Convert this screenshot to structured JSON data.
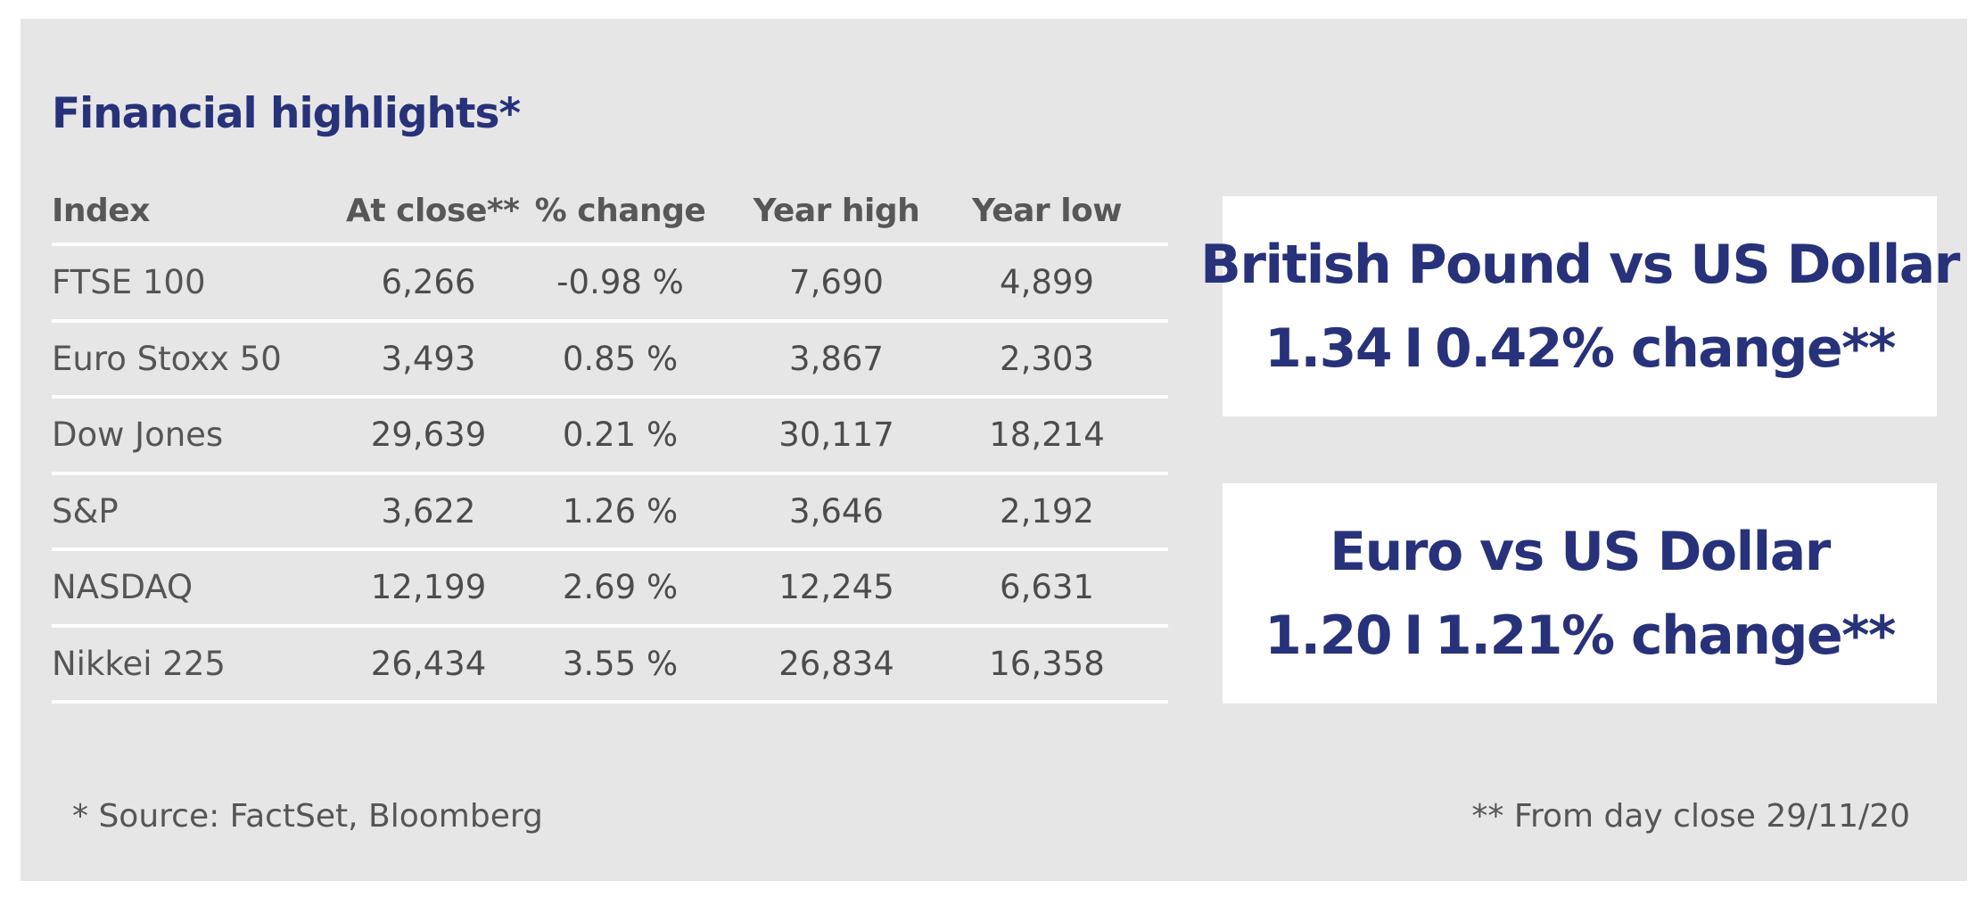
{
  "title": "Financial highlights*",
  "table": {
    "headers": [
      "Index",
      "At close**",
      "% change",
      "Year high",
      "Year low"
    ],
    "rows": [
      {
        "index": "FTSE 100",
        "close": "6,266",
        "change": "-0.98 %",
        "high": "7,690",
        "low": "4,899"
      },
      {
        "index": "Euro Stoxx 50",
        "close": "3,493",
        "change": "0.85 %",
        "high": "3,867",
        "low": "2,303"
      },
      {
        "index": "Dow Jones",
        "close": "29,639",
        "change": "0.21 %",
        "high": "30,117",
        "low": "18,214"
      },
      {
        "index": "S&P",
        "close": "3,622",
        "change": "1.26 %",
        "high": "3,646",
        "low": "2,192"
      },
      {
        "index": "NASDAQ",
        "close": "12,199",
        "change": "2.69 %",
        "high": "12,245",
        "low": "6,631"
      },
      {
        "index": "Nikkei 225",
        "close": "26,434",
        "change": "3.55 %",
        "high": "26,834",
        "low": "16,358"
      }
    ]
  },
  "fx": [
    {
      "title": "British Pound vs US Dollar",
      "rate": "1.34",
      "separator": "I",
      "change": "0.42% change**"
    },
    {
      "title": "Euro vs US Dollar",
      "rate": "1.20",
      "separator": "I",
      "change": "1.21% change**"
    }
  ],
  "footnotes": {
    "source": "* Source: FactSet, Bloomberg",
    "close_date": "** From day close 29/11/20"
  },
  "colors": {
    "background": "#e6e6e6",
    "accent": "#27327a",
    "text": "#4c4c4c",
    "divider": "#ffffff"
  }
}
